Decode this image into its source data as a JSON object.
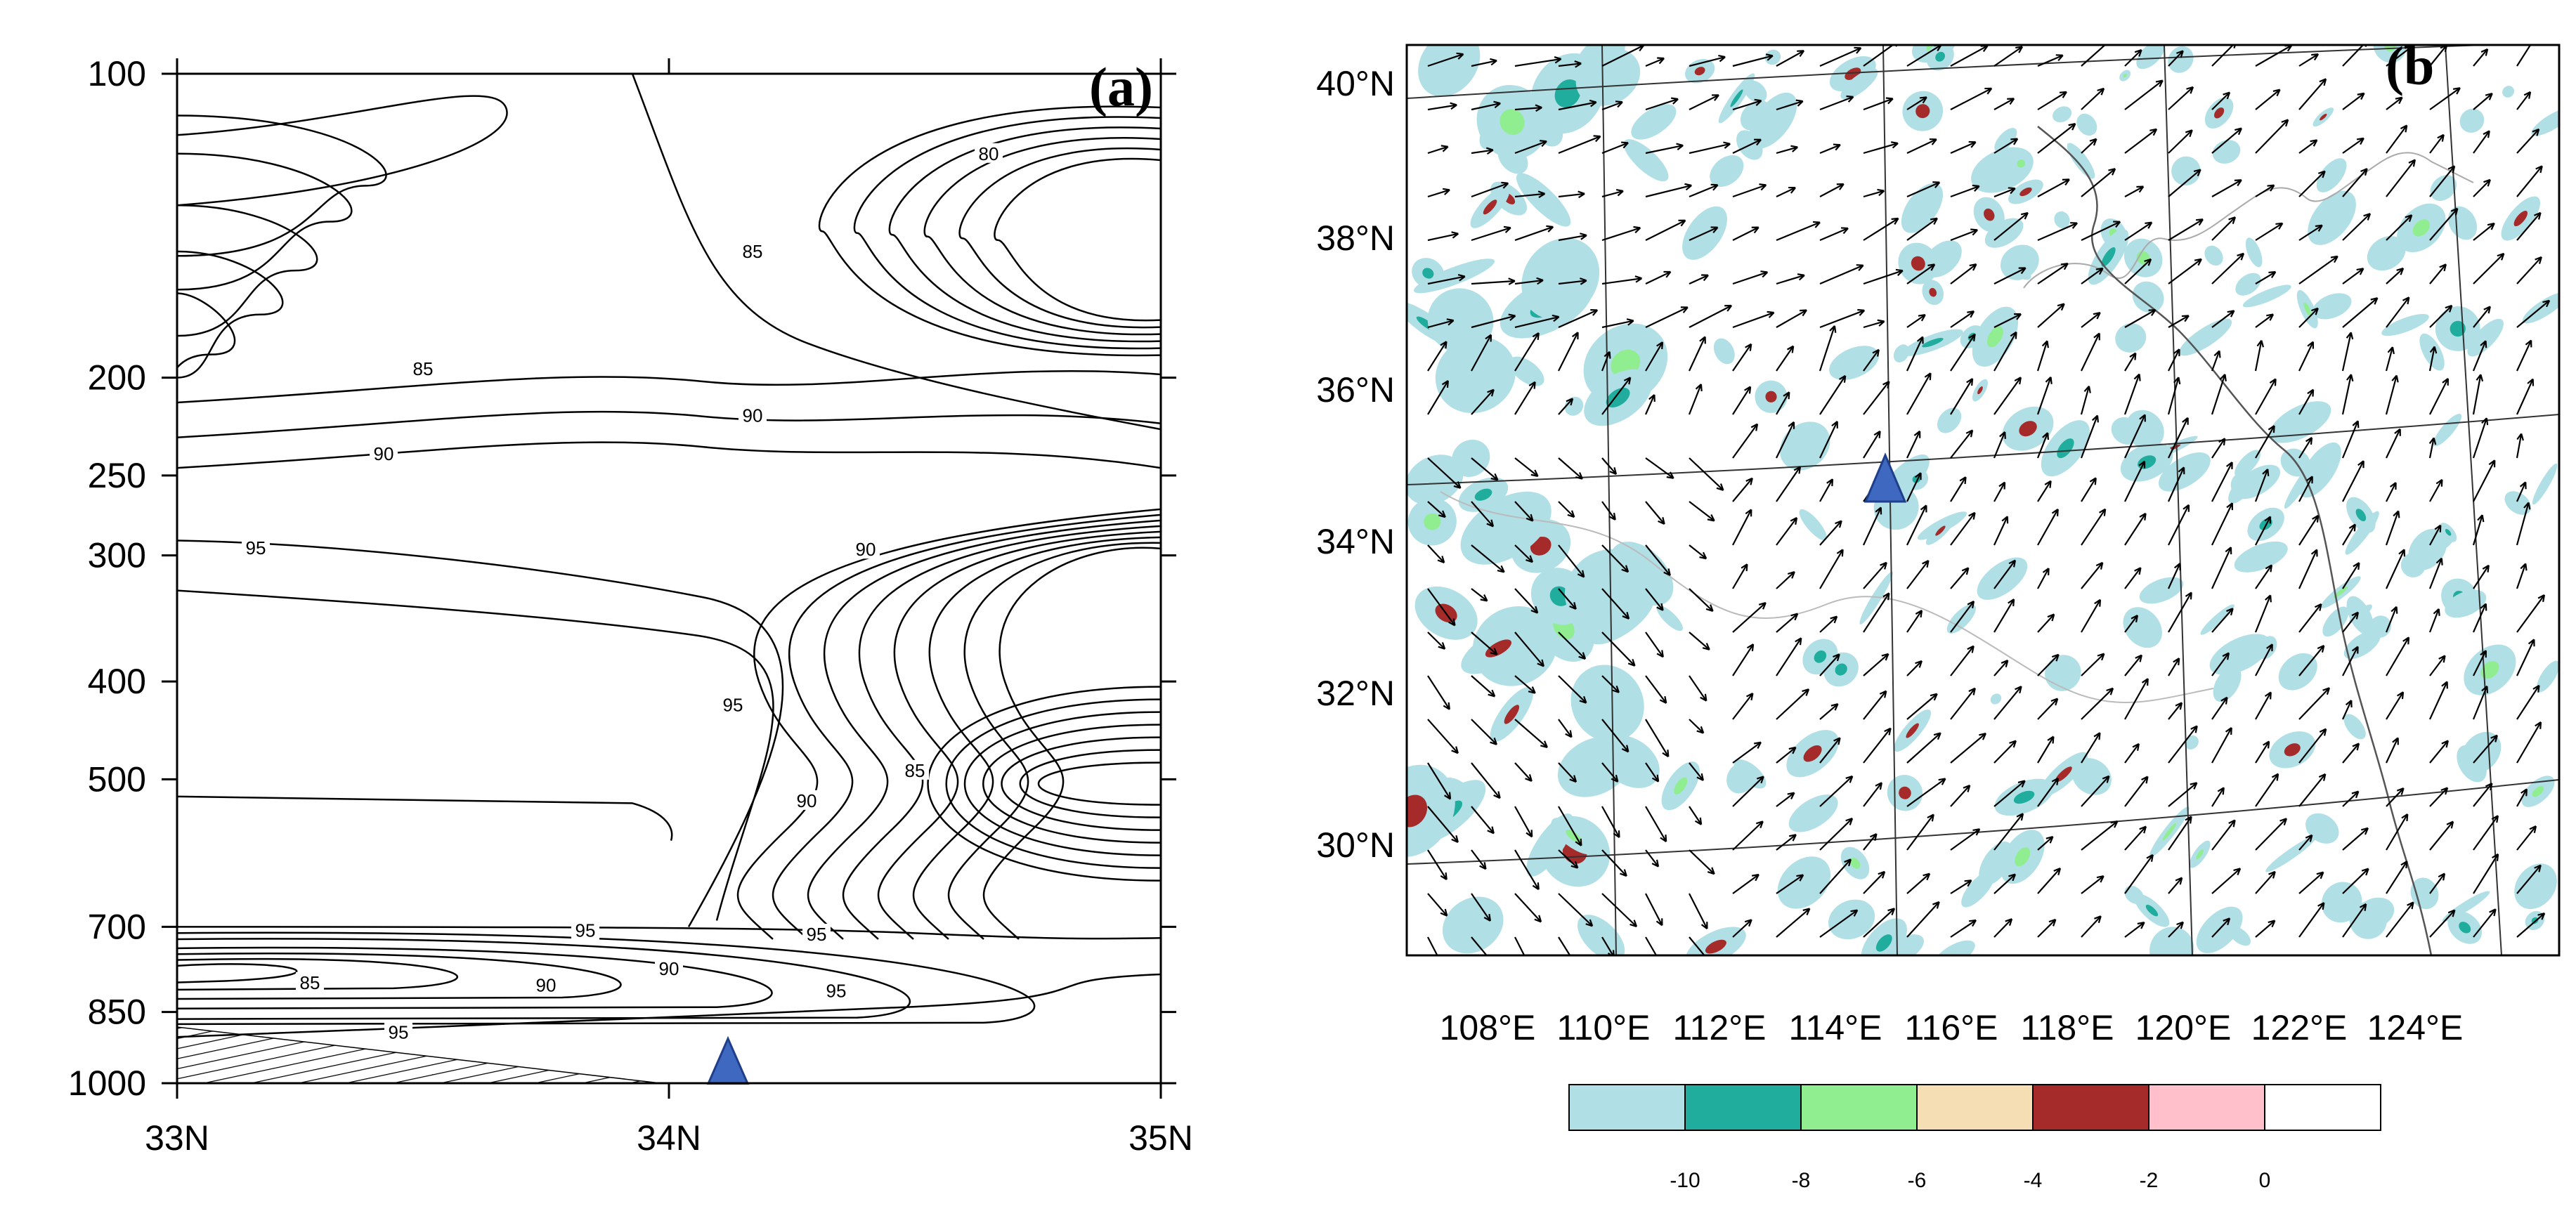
{
  "chart_data": [
    {
      "panel": "(a)",
      "type": "contour",
      "x_tick_labels": [
        "33N",
        "34N",
        "35N"
      ],
      "x": [
        33,
        34,
        35
      ],
      "y_tick_labels": [
        "100",
        "200",
        "250",
        "300",
        "400",
        "500",
        "700",
        "850",
        "1000"
      ],
      "y_levels": [
        100,
        200,
        250,
        300,
        400,
        500,
        700,
        850,
        1000
      ],
      "xlim": [
        33,
        35
      ],
      "ylim": [
        1000,
        100
      ],
      "contour_labels": [
        {
          "text": "80",
          "x": 34.65,
          "y": 120
        },
        {
          "text": "85",
          "x": 34.17,
          "y": 150
        },
        {
          "text": "85",
          "x": 33.5,
          "y": 196
        },
        {
          "text": "90",
          "x": 34.17,
          "y": 218
        },
        {
          "text": "90",
          "x": 33.42,
          "y": 238
        },
        {
          "text": "95",
          "x": 33.16,
          "y": 295
        },
        {
          "text": "90",
          "x": 34.4,
          "y": 296
        },
        {
          "text": "95",
          "x": 34.13,
          "y": 422
        },
        {
          "text": "85",
          "x": 34.5,
          "y": 490
        },
        {
          "text": "90",
          "x": 34.28,
          "y": 525
        },
        {
          "text": "95",
          "x": 33.83,
          "y": 706
        },
        {
          "text": "95",
          "x": 34.3,
          "y": 712
        },
        {
          "text": "90",
          "x": 34.0,
          "y": 770
        },
        {
          "text": "85",
          "x": 33.27,
          "y": 795
        },
        {
          "text": "90",
          "x": 33.75,
          "y": 800
        },
        {
          "text": "95",
          "x": 34.34,
          "y": 810
        },
        {
          "text": "95",
          "x": 33.45,
          "y": 890
        }
      ],
      "marker": {
        "shape": "triangle",
        "x": 34.12,
        "y": 960,
        "color": "#3f68c1"
      }
    },
    {
      "panel": "(b)",
      "type": "map",
      "lon_tick_labels": [
        "108°E",
        "110°E",
        "112°E",
        "114°E",
        "116°E",
        "118°E",
        "120°E",
        "122°E",
        "124°E"
      ],
      "lat_tick_labels": [
        "40°N",
        "38°N",
        "36°N",
        "34°N",
        "32°N",
        "30°N"
      ],
      "colorbar": {
        "tick_labels": [
          "-10",
          "-8",
          "-6",
          "-4",
          "-2",
          "0"
        ],
        "colors": [
          "#b0dfe6",
          "#20ad9e",
          "#90ee90",
          "#f5deb3",
          "#a52a2a",
          "#ffc0cb",
          "#ffffff"
        ]
      },
      "marker": {
        "shape": "triangle",
        "lon": 114.5,
        "lat": 34.8,
        "color": "#3f68c1"
      }
    }
  ],
  "panel_a": {
    "label": "(a)"
  },
  "panel_b": {
    "label": "(b"
  }
}
